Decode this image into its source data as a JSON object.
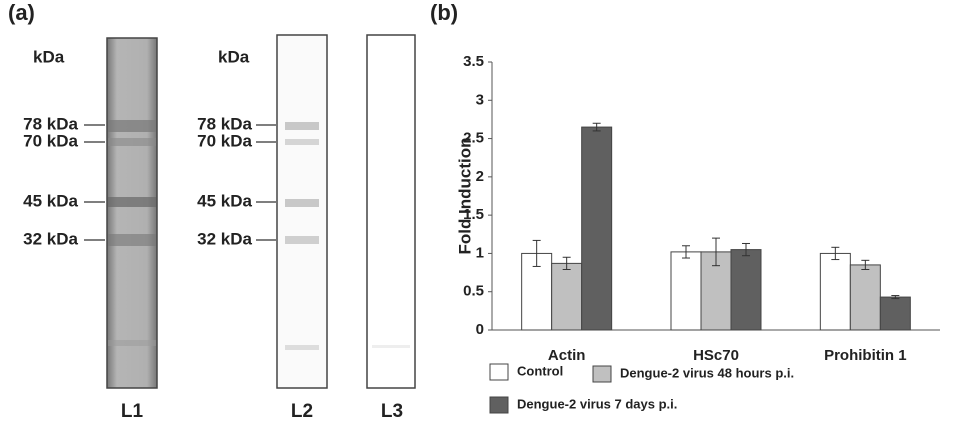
{
  "panel_a": {
    "label": "(a)",
    "unit": "kDa",
    "markers": [
      "78 kDa",
      "70 kDa",
      "45 kDa",
      "32 kDa"
    ],
    "lanes": [
      "L1",
      "L2",
      "L3"
    ]
  },
  "chart_data": {
    "type": "bar",
    "panel_label": "(b)",
    "y_label": "Fold Induction",
    "categories": [
      "Actin",
      "HSc70",
      "Prohibitin 1"
    ],
    "series": [
      {
        "name": "Control",
        "color": "#ffffff",
        "values": [
          1.0,
          1.02,
          1.0
        ],
        "errors": [
          0.17,
          0.08,
          0.08
        ]
      },
      {
        "name": "Dengue-2 virus 48 hours p.i.",
        "color": "#c0c0c0",
        "values": [
          0.87,
          1.02,
          0.85
        ],
        "errors": [
          0.08,
          0.18,
          0.06
        ]
      },
      {
        "name": "Dengue-2 virus 7 days p.i.",
        "color": "#606060",
        "values": [
          2.65,
          1.05,
          0.43
        ],
        "errors": [
          0.05,
          0.08,
          0.02
        ]
      }
    ],
    "ylim": [
      0,
      3.5
    ],
    "yticks": [
      0,
      0.5,
      1,
      1.5,
      2,
      2.5,
      3,
      3.5
    ]
  }
}
